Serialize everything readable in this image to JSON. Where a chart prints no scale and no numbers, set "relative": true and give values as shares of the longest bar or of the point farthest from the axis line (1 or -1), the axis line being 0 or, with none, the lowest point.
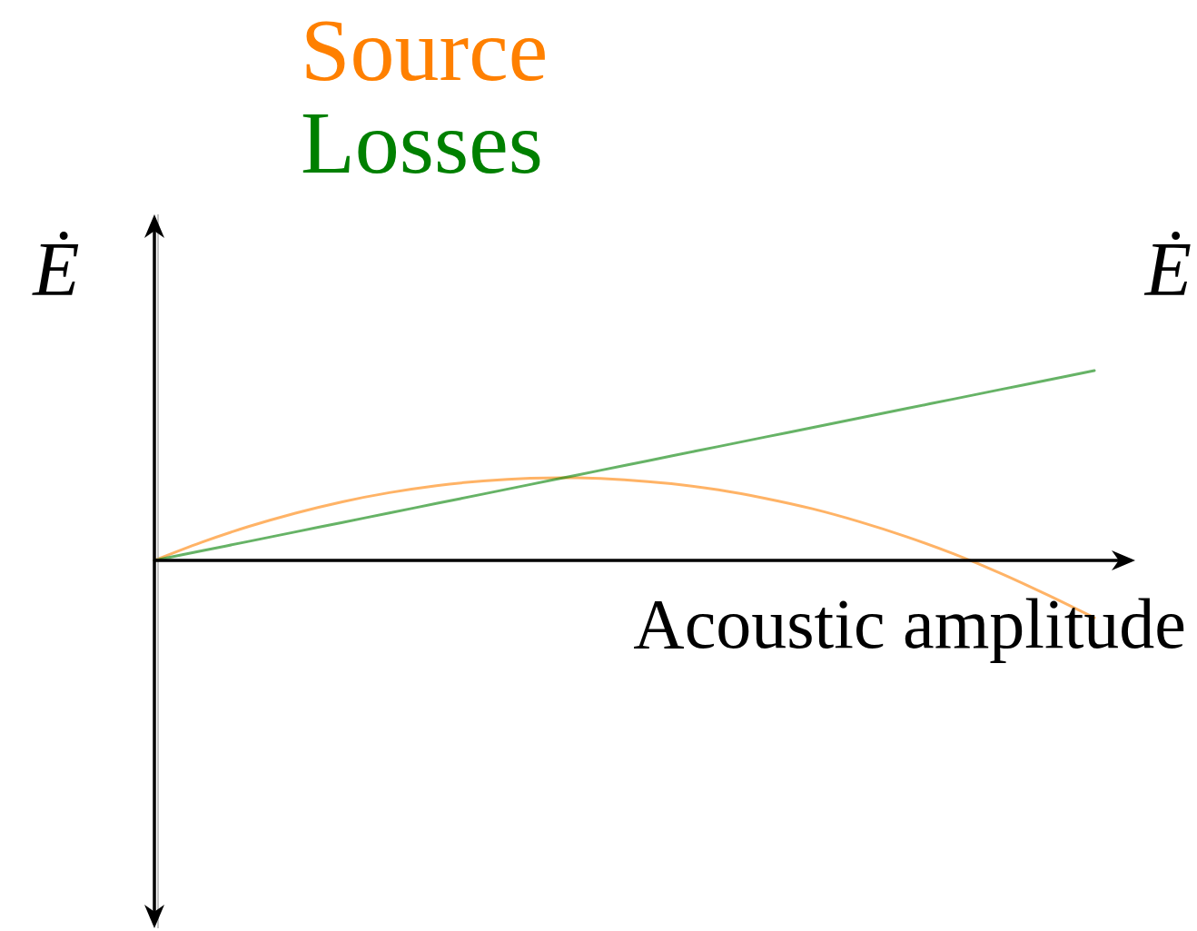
{
  "chart_data": {
    "type": "line",
    "relative": true,
    "xlabel": "Acoustic amplitude",
    "ylabel": "Ė",
    "y2label": "Ė",
    "legend": "top",
    "categories": [
      null,
      null,
      null,
      null,
      null,
      null,
      null,
      null,
      null,
      null,
      null,
      null,
      null,
      null,
      null,
      null,
      null,
      null,
      null,
      null,
      null
    ],
    "series": [
      {
        "name": "Source",
        "color": "#ff8000",
        "values": [
          0,
          0.095,
          0.178,
          0.249,
          0.309,
          0.357,
          0.394,
          0.419,
          0.433,
          0.435,
          0.425,
          0.404,
          0.372,
          0.327,
          0.272,
          0.204,
          0.125,
          0.035,
          -0.067,
          -0.181,
          -0.302
        ]
      },
      {
        "name": "Losses",
        "color": "#008000",
        "values": [
          0,
          0.05,
          0.1,
          0.15,
          0.2,
          0.25,
          0.3,
          0.35,
          0.4,
          0.45,
          0.5,
          0.55,
          0.6,
          0.65,
          0.7,
          0.75,
          0.8,
          0.85,
          0.9,
          0.95,
          1
        ]
      }
    ]
  }
}
